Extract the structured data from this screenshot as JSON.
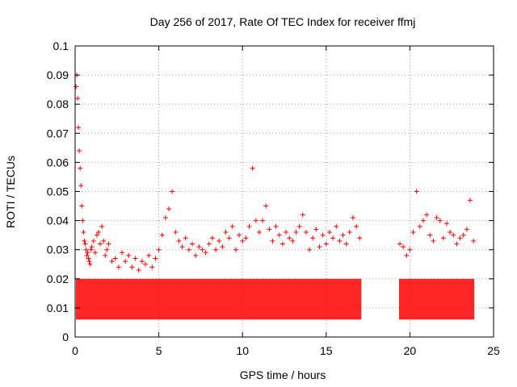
{
  "chart_data": {
    "type": "scatter",
    "title": "Day 256 of 2017, Rate Of TEC Index for receiver ffmj",
    "xlabel": "GPS time / hours",
    "ylabel": "ROTI / TECUs",
    "xlim": [
      0,
      25
    ],
    "ylim": [
      0,
      0.1
    ],
    "x_ticks": [
      0,
      5,
      10,
      15,
      20,
      25
    ],
    "x_tick_labels": [
      "0",
      "5",
      "10",
      "15",
      "20",
      "25"
    ],
    "y_ticks": [
      0,
      0.01,
      0.02,
      0.03,
      0.04,
      0.05,
      0.06,
      0.07,
      0.08,
      0.09,
      0.1
    ],
    "y_tick_labels": [
      "0",
      "0.01",
      "0.02",
      "0.03",
      "0.04",
      "0.05",
      "0.06",
      "0.07",
      "0.08",
      "0.09",
      "0.1"
    ],
    "grid": true,
    "marker": "+",
    "color": "#ff0000",
    "series": [
      {
        "name": "ROTI",
        "x": [
          0.05,
          0.1,
          0.15,
          0.2,
          0.25,
          0.3,
          0.35,
          0.4,
          0.45,
          0.5,
          0.55,
          0.6,
          0.65,
          0.7,
          0.75,
          0.8,
          0.85,
          0.9,
          0.95,
          1.0,
          1.1,
          1.2,
          1.3,
          1.4,
          1.5,
          1.6,
          1.7,
          1.8,
          1.9,
          2.0,
          2.2,
          2.4,
          2.6,
          2.8,
          3.0,
          3.2,
          3.4,
          3.6,
          3.8,
          4.0,
          4.2,
          4.4,
          4.6,
          4.8,
          5.0,
          5.2,
          5.4,
          5.6,
          5.8,
          6.0,
          6.2,
          6.4,
          6.6,
          6.8,
          7.0,
          7.2,
          7.4,
          7.6,
          7.8,
          8.0,
          8.2,
          8.4,
          8.6,
          8.8,
          9.0,
          9.2,
          9.4,
          9.6,
          9.8,
          10.0,
          10.2,
          10.4,
          10.6,
          10.8,
          11.0,
          11.2,
          11.4,
          11.6,
          11.8,
          12.0,
          12.2,
          12.4,
          12.6,
          12.8,
          13.0,
          13.2,
          13.4,
          13.6,
          13.8,
          14.0,
          14.2,
          14.4,
          14.6,
          14.8,
          15.0,
          15.2,
          15.4,
          15.6,
          15.8,
          16.0,
          16.2,
          16.4,
          16.6,
          16.8,
          17.0,
          19.4,
          19.6,
          19.8,
          20.0,
          20.2,
          20.4,
          20.6,
          20.8,
          21.0,
          21.2,
          21.4,
          21.6,
          21.8,
          22.0,
          22.2,
          22.4,
          22.6,
          22.8,
          23.0,
          23.2,
          23.4,
          23.6,
          23.8
        ],
        "y": [
          0.086,
          0.09,
          0.082,
          0.072,
          0.064,
          0.058,
          0.052,
          0.045,
          0.04,
          0.036,
          0.033,
          0.032,
          0.03,
          0.028,
          0.029,
          0.027,
          0.026,
          0.025,
          0.03,
          0.031,
          0.033,
          0.029,
          0.035,
          0.036,
          0.032,
          0.038,
          0.033,
          0.028,
          0.03,
          0.032,
          0.026,
          0.027,
          0.024,
          0.029,
          0.026,
          0.028,
          0.024,
          0.027,
          0.023,
          0.026,
          0.025,
          0.028,
          0.024,
          0.027,
          0.03,
          0.035,
          0.041,
          0.044,
          0.05,
          0.036,
          0.033,
          0.031,
          0.034,
          0.03,
          0.032,
          0.028,
          0.031,
          0.03,
          0.029,
          0.032,
          0.034,
          0.03,
          0.033,
          0.031,
          0.036,
          0.034,
          0.038,
          0.03,
          0.035,
          0.033,
          0.034,
          0.038,
          0.058,
          0.04,
          0.036,
          0.04,
          0.045,
          0.037,
          0.033,
          0.038,
          0.035,
          0.032,
          0.036,
          0.034,
          0.033,
          0.036,
          0.038,
          0.042,
          0.036,
          0.03,
          0.034,
          0.037,
          0.031,
          0.035,
          0.032,
          0.036,
          0.034,
          0.038,
          0.033,
          0.035,
          0.032,
          0.036,
          0.041,
          0.038,
          0.034,
          0.032,
          0.031,
          0.028,
          0.03,
          0.036,
          0.05,
          0.038,
          0.04,
          0.042,
          0.035,
          0.033,
          0.041,
          0.04,
          0.034,
          0.039,
          0.036,
          0.035,
          0.032,
          0.034,
          0.035,
          0.037,
          0.047,
          0.033
        ]
      }
    ]
  }
}
